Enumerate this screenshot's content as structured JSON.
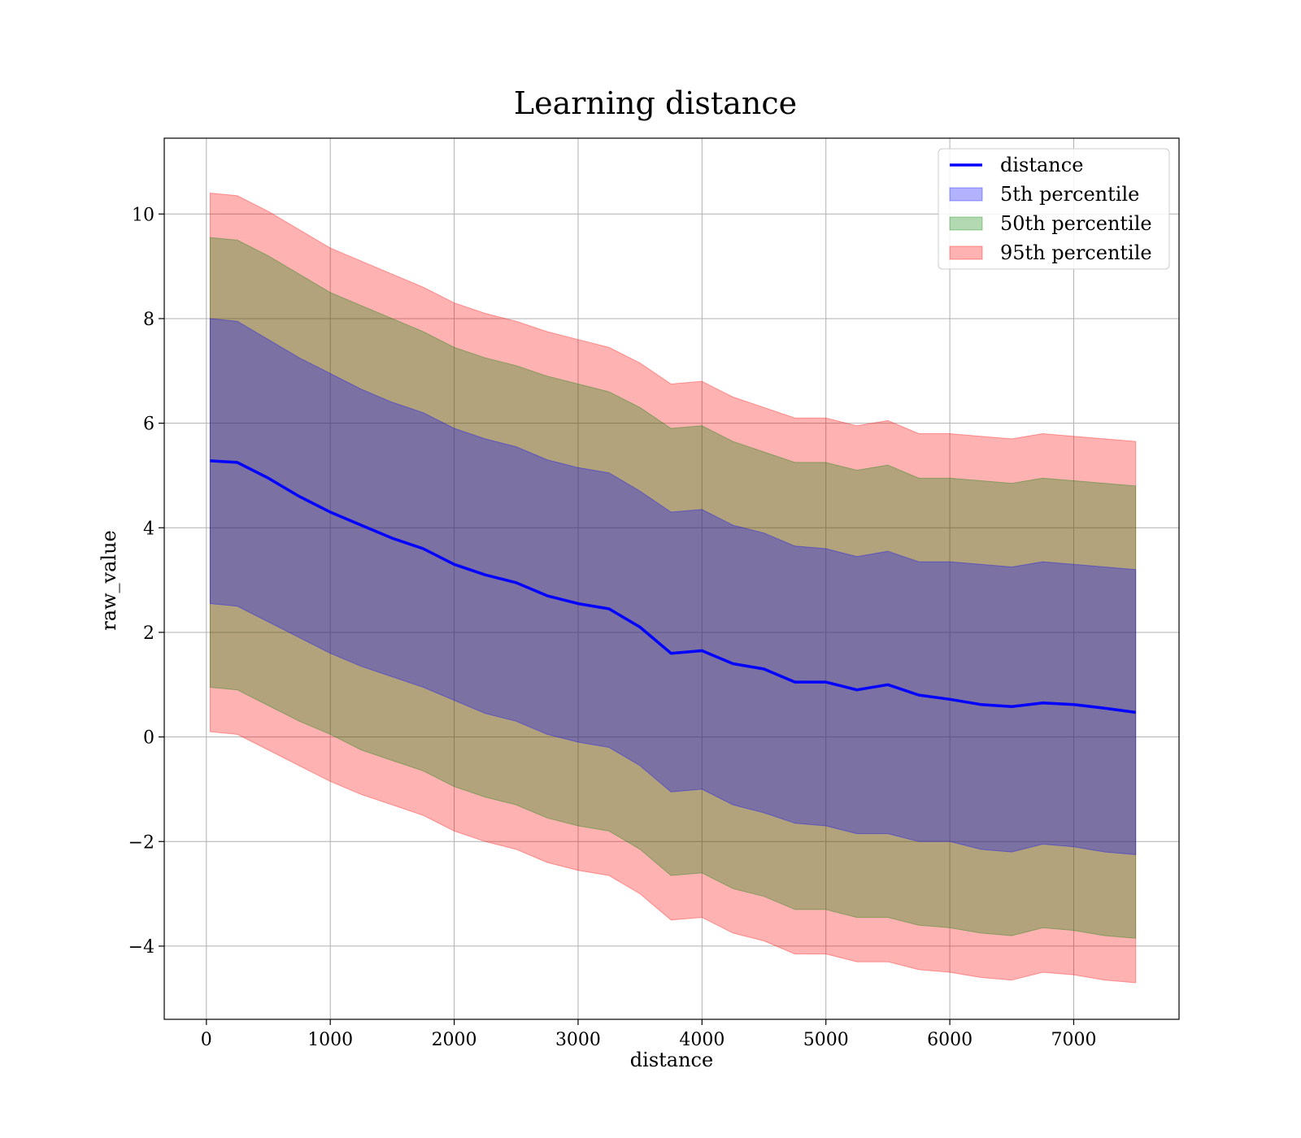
{
  "chart_data": {
    "type": "line",
    "title": "Learning distance",
    "xlabel": "distance",
    "ylabel": "raw_value",
    "xlim": [
      -340,
      7850
    ],
    "ylim": [
      -5.4,
      11.45
    ],
    "xticks": [
      0,
      1000,
      2000,
      3000,
      4000,
      5000,
      6000,
      7000
    ],
    "xtick_labels": [
      "0",
      "1000",
      "2000",
      "3000",
      "4000",
      "5000",
      "6000",
      "7000"
    ],
    "yticks": [
      -4,
      -2,
      0,
      2,
      4,
      6,
      8,
      10
    ],
    "ytick_labels": [
      "−4",
      "−2",
      "0",
      "2",
      "4",
      "6",
      "8",
      "10"
    ],
    "grid": true,
    "legend_position": "top-right",
    "x": [
      30,
      250,
      500,
      750,
      1000,
      1250,
      1500,
      1750,
      2000,
      2250,
      2500,
      2750,
      3000,
      3250,
      3500,
      3750,
      4000,
      4250,
      4500,
      4750,
      5000,
      5250,
      5500,
      5750,
      6000,
      6250,
      6500,
      6750,
      7000,
      7250,
      7500
    ],
    "series": [
      {
        "name": "distance",
        "kind": "line",
        "color": "#0000ff",
        "values": [
          5.28,
          5.25,
          4.95,
          4.6,
          4.3,
          4.05,
          3.8,
          3.6,
          3.3,
          3.1,
          2.95,
          2.7,
          2.55,
          2.45,
          2.1,
          1.6,
          1.65,
          1.4,
          1.3,
          1.05,
          1.05,
          0.9,
          1.0,
          0.8,
          0.72,
          0.62,
          0.58,
          0.65,
          0.62,
          0.55,
          0.47
        ]
      },
      {
        "name": "5th percentile",
        "kind": "band",
        "color": "#0000ff",
        "opacity": 0.3,
        "upper": [
          8.0,
          7.95,
          7.6,
          7.25,
          6.95,
          6.65,
          6.4,
          6.2,
          5.9,
          5.7,
          5.55,
          5.3,
          5.15,
          5.05,
          4.7,
          4.3,
          4.35,
          4.05,
          3.9,
          3.65,
          3.6,
          3.45,
          3.55,
          3.35,
          3.35,
          3.3,
          3.25,
          3.35,
          3.3,
          3.25,
          3.2
        ],
        "lower": [
          2.55,
          2.5,
          2.2,
          1.9,
          1.6,
          1.35,
          1.15,
          0.95,
          0.7,
          0.45,
          0.3,
          0.05,
          -0.1,
          -0.2,
          -0.55,
          -1.05,
          -1.0,
          -1.3,
          -1.45,
          -1.65,
          -1.7,
          -1.85,
          -1.85,
          -2.0,
          -2.0,
          -2.15,
          -2.2,
          -2.05,
          -2.1,
          -2.2,
          -2.25
        ]
      },
      {
        "name": "50th percentile",
        "kind": "band",
        "color": "#008000",
        "opacity": 0.3,
        "upper": [
          9.55,
          9.5,
          9.2,
          8.85,
          8.5,
          8.25,
          8.0,
          7.75,
          7.45,
          7.25,
          7.1,
          6.9,
          6.75,
          6.6,
          6.3,
          5.9,
          5.95,
          5.65,
          5.45,
          5.25,
          5.25,
          5.1,
          5.2,
          4.95,
          4.95,
          4.9,
          4.85,
          4.95,
          4.9,
          4.85,
          4.8
        ],
        "lower": [
          0.95,
          0.9,
          0.6,
          0.3,
          0.05,
          -0.25,
          -0.45,
          -0.65,
          -0.95,
          -1.15,
          -1.3,
          -1.55,
          -1.7,
          -1.8,
          -2.15,
          -2.65,
          -2.6,
          -2.9,
          -3.05,
          -3.3,
          -3.3,
          -3.45,
          -3.45,
          -3.6,
          -3.65,
          -3.75,
          -3.8,
          -3.65,
          -3.7,
          -3.8,
          -3.85
        ]
      },
      {
        "name": "95th percentile",
        "kind": "band",
        "color": "#ff0000",
        "opacity": 0.3,
        "upper": [
          10.4,
          10.35,
          10.05,
          9.7,
          9.35,
          9.1,
          8.85,
          8.6,
          8.3,
          8.1,
          7.95,
          7.75,
          7.6,
          7.45,
          7.15,
          6.75,
          6.8,
          6.5,
          6.3,
          6.1,
          6.1,
          5.95,
          6.05,
          5.8,
          5.8,
          5.75,
          5.7,
          5.8,
          5.75,
          5.7,
          5.65
        ],
        "lower": [
          0.1,
          0.05,
          -0.25,
          -0.55,
          -0.85,
          -1.1,
          -1.3,
          -1.5,
          -1.8,
          -2.0,
          -2.15,
          -2.4,
          -2.55,
          -2.65,
          -3.0,
          -3.5,
          -3.45,
          -3.75,
          -3.9,
          -4.15,
          -4.15,
          -4.3,
          -4.3,
          -4.45,
          -4.5,
          -4.6,
          -4.65,
          -4.5,
          -4.55,
          -4.65,
          -4.7
        ]
      }
    ]
  }
}
